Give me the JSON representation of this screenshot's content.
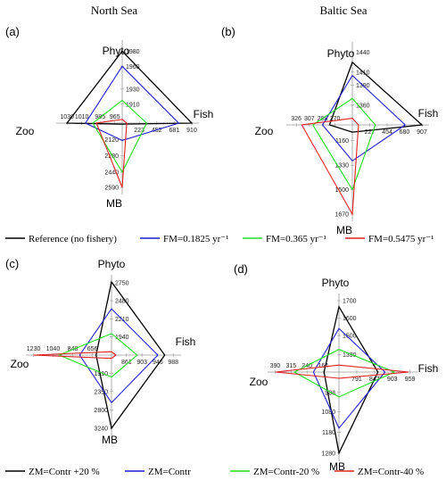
{
  "legend_top": {
    "items": [
      {
        "label": "Reference (no fishery)",
        "color": "#000000"
      },
      {
        "label": "FM=0.1825 yr⁻¹",
        "color": "#1f1fd0"
      },
      {
        "label": "FM=0.365 yr⁻¹",
        "color": "#22dd22"
      },
      {
        "label": "FM=0.5475 yr⁻¹",
        "color": "#e02020"
      }
    ]
  },
  "legend_bottom": {
    "items": [
      {
        "label": "ZM=Contr +20 %",
        "color": "#000000"
      },
      {
        "label": "ZM=Contr",
        "color": "#1f1fd0"
      },
      {
        "label": "ZM=Contr-20 %",
        "color": "#22dd22"
      },
      {
        "label": "ZM=Contr-40 %",
        "color": "#e02020"
      }
    ]
  },
  "chart_data": [
    {
      "type": "radar",
      "panel": "(a)",
      "title": "North Sea",
      "axes": {
        "phyto": {
          "label": "Phyto",
          "ticks": [
            "1980",
            "1960",
            "1930",
            "1910"
          ],
          "range": [
            1885,
            1985
          ]
        },
        "fish": {
          "label": "Fish",
          "ticks": [
            "223",
            "452",
            "681",
            "910"
          ],
          "range": [
            0,
            910
          ]
        },
        "zoo": {
          "label": "Zoo",
          "ticks": [
            "1030",
            "1010",
            "985",
            "965"
          ],
          "range": [
            955,
            1035
          ]
        },
        "mb": {
          "label": "MB",
          "ticks": [
            "2120",
            "2280",
            "2440",
            "2590"
          ],
          "range": [
            1960,
            2590
          ]
        }
      },
      "series": [
        {
          "color": "#000000",
          "values": {
            "phyto": 1980,
            "fish": 910,
            "zoo": 1030,
            "mb": 1970
          }
        },
        {
          "color": "#1f1fd0",
          "values": {
            "phyto": 1960,
            "fish": 740,
            "zoo": 1005,
            "mb": 2130
          }
        },
        {
          "color": "#22dd22",
          "values": {
            "phyto": 1915,
            "fish": 320,
            "zoo": 995,
            "mb": 2440
          }
        },
        {
          "color": "#e02020",
          "values": {
            "phyto": 1890,
            "fish": 60,
            "zoo": 990,
            "mb": 2590
          }
        }
      ]
    },
    {
      "type": "radar",
      "panel": "(b)",
      "title": "Baltic Sea",
      "axes": {
        "phyto": {
          "label": "Phyto",
          "ticks": [
            "1440",
            "1410",
            "1390",
            "1360"
          ],
          "range": [
            1330,
            1445
          ]
        },
        "fish": {
          "label": "Fish",
          "ticks": [
            "227",
            "454",
            "680",
            "907"
          ],
          "range": [
            0,
            907
          ]
        },
        "zoo": {
          "label": "Zoo",
          "ticks": [
            "326",
            "307",
            "288",
            "270"
          ],
          "range": [
            245,
            330
          ]
        },
        "mb": {
          "label": "MB",
          "ticks": [
            "1160",
            "1330",
            "1500",
            "1670"
          ],
          "range": [
            1050,
            1670
          ]
        }
      },
      "series": [
        {
          "color": "#000000",
          "values": {
            "phyto": 1425,
            "fish": 907,
            "zoo": 278,
            "mb": 1100
          }
        },
        {
          "color": "#1f1fd0",
          "values": {
            "phyto": 1405,
            "fish": 690,
            "zoo": 288,
            "mb": 1300
          }
        },
        {
          "color": "#22dd22",
          "values": {
            "phyto": 1370,
            "fish": 300,
            "zoo": 302,
            "mb": 1500
          }
        },
        {
          "color": "#e02020",
          "values": {
            "phyto": 1340,
            "fish": 80,
            "zoo": 318,
            "mb": 1670
          }
        }
      ]
    },
    {
      "type": "radar",
      "panel": "(c)",
      "title": "",
      "axes": {
        "phyto": {
          "label": "Phyto",
          "ticks": [
            "2750",
            "2480",
            "2210",
            "1940"
          ],
          "range": [
            1670,
            2760
          ]
        },
        "fish": {
          "label": "Fish",
          "ticks": [
            "861",
            "903",
            "946",
            "988"
          ],
          "range": [
            820,
            990
          ]
        },
        "zoo": {
          "label": "Zoo",
          "ticks": [
            "1230",
            "1040",
            "848",
            "656"
          ],
          "range": [
            470,
            1235
          ]
        },
        "mb": {
          "label": "MB",
          "ticks": [
            "1910",
            "2350",
            "2800",
            "3240"
          ],
          "range": [
            1470,
            3240
          ]
        }
      },
      "series": [
        {
          "color": "#000000",
          "values": {
            "phyto": 2760,
            "fish": 965,
            "zoo": 620,
            "mb": 3240
          }
        },
        {
          "color": "#1f1fd0",
          "values": {
            "phyto": 2360,
            "fish": 946,
            "zoo": 780,
            "mb": 2620
          }
        },
        {
          "color": "#22dd22",
          "values": {
            "phyto": 1990,
            "fish": 890,
            "zoo": 980,
            "mb": 2000
          }
        },
        {
          "color": "#e02020",
          "values": {
            "phyto": 1720,
            "fish": 832,
            "zoo": 1230,
            "mb": 1550
          }
        }
      ]
    },
    {
      "type": "radar",
      "panel": "(d)",
      "title": "",
      "axes": {
        "phyto": {
          "label": "Phyto",
          "ticks": [
            "1700",
            "1600",
            "1500",
            "1390"
          ],
          "range": [
            1290,
            1700
          ]
        },
        "fish": {
          "label": "Fish",
          "ticks": [
            "791",
            "847",
            "903",
            "959"
          ],
          "range": [
            735,
            960
          ]
        },
        "zoo": {
          "label": "Zoo",
          "ticks": [
            "390",
            "315",
            "240",
            "164"
          ],
          "range": [
            90,
            392
          ]
        },
        "mb": {
          "label": "MB",
          "ticks": [
            "988",
            "1080",
            "1180",
            "1280"
          ],
          "range": [
            890,
            1285
          ]
        }
      },
      "series": [
        {
          "color": "#000000",
          "values": {
            "phyto": 1665,
            "fish": 858,
            "zoo": 160,
            "mb": 1280
          }
        },
        {
          "color": "#1f1fd0",
          "values": {
            "phyto": 1540,
            "fish": 880,
            "zoo": 210,
            "mb": 1160
          }
        },
        {
          "color": "#22dd22",
          "values": {
            "phyto": 1420,
            "fish": 910,
            "zoo": 300,
            "mb": 1010
          }
        },
        {
          "color": "#e02020",
          "values": {
            "phyto": 1330,
            "fish": 955,
            "zoo": 388,
            "mb": 920
          }
        }
      ]
    }
  ]
}
